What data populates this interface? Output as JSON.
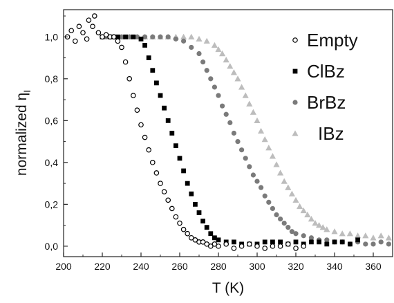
{
  "chart_data": {
    "type": "scatter",
    "title": "",
    "xlabel": "T (K)",
    "ylabel": "normalized η",
    "ylabel_subscript": "I",
    "xlim": [
      200,
      370
    ],
    "ylim": [
      -0.05,
      1.13
    ],
    "xticks": [
      "200",
      "220",
      "240",
      "260",
      "280",
      "300",
      "320",
      "340",
      "360"
    ],
    "yticks": [
      "0,0",
      "0,2",
      "0,4",
      "0,6",
      "0,8",
      "1,0"
    ],
    "legend_placement": "top-right",
    "grid": false,
    "series": [
      {
        "name": "Empty",
        "marker": "open-circle",
        "color": "#000000",
        "points": [
          [
            202,
            1.0
          ],
          [
            204,
            1.03
          ],
          [
            206,
            0.98
          ],
          [
            208,
            1.05
          ],
          [
            210,
            1.02
          ],
          [
            212,
            0.99
          ],
          [
            213,
            1.08
          ],
          [
            215,
            1.05
          ],
          [
            216,
            1.1
          ],
          [
            218,
            1.02
          ],
          [
            220,
            1.0
          ],
          [
            222,
            1.01
          ],
          [
            224,
            1.0
          ],
          [
            226,
            1.0
          ],
          [
            228,
            0.98
          ],
          [
            230,
            0.95
          ],
          [
            232,
            0.88
          ],
          [
            234,
            0.8
          ],
          [
            236,
            0.72
          ],
          [
            238,
            0.65
          ],
          [
            240,
            0.58
          ],
          [
            242,
            0.52
          ],
          [
            244,
            0.46
          ],
          [
            246,
            0.4
          ],
          [
            248,
            0.35
          ],
          [
            250,
            0.3
          ],
          [
            252,
            0.26
          ],
          [
            254,
            0.22
          ],
          [
            256,
            0.18
          ],
          [
            258,
            0.14
          ],
          [
            260,
            0.11
          ],
          [
            262,
            0.08
          ],
          [
            264,
            0.06
          ],
          [
            266,
            0.04
          ],
          [
            268,
            0.03
          ],
          [
            270,
            0.02
          ],
          [
            272,
            0.02
          ],
          [
            274,
            0.01
          ],
          [
            276,
            0.0
          ],
          [
            278,
            0.01
          ],
          [
            280,
            0.0
          ],
          [
            284,
            0.01
          ],
          [
            288,
            -0.01
          ],
          [
            292,
            0.0
          ],
          [
            296,
            0.01
          ],
          [
            300,
            0.0
          ],
          [
            304,
            -0.01
          ],
          [
            308,
            0.0
          ],
          [
            312,
            0.0
          ],
          [
            316,
            0.01
          ],
          [
            320,
            -0.01
          ],
          [
            324,
            0.0
          ]
        ]
      },
      {
        "name": "ClBz",
        "marker": "filled-square",
        "color": "#000000",
        "points": [
          [
            220,
            1.0
          ],
          [
            224,
            1.0
          ],
          [
            228,
            1.0
          ],
          [
            232,
            1.0
          ],
          [
            236,
            1.0
          ],
          [
            240,
            0.99
          ],
          [
            242,
            0.96
          ],
          [
            244,
            0.9
          ],
          [
            246,
            0.84
          ],
          [
            248,
            0.78
          ],
          [
            250,
            0.72
          ],
          [
            252,
            0.66
          ],
          [
            254,
            0.6
          ],
          [
            256,
            0.54
          ],
          [
            258,
            0.48
          ],
          [
            260,
            0.42
          ],
          [
            262,
            0.36
          ],
          [
            264,
            0.3
          ],
          [
            266,
            0.25
          ],
          [
            268,
            0.2
          ],
          [
            270,
            0.16
          ],
          [
            272,
            0.12
          ],
          [
            274,
            0.09
          ],
          [
            276,
            0.06
          ],
          [
            278,
            0.04
          ],
          [
            280,
            0.03
          ],
          [
            284,
            0.02
          ],
          [
            288,
            0.02
          ],
          [
            292,
            0.01
          ],
          [
            296,
            0.01
          ],
          [
            300,
            0.01
          ],
          [
            304,
            0.02
          ],
          [
            308,
            0.02
          ],
          [
            312,
            0.02
          ],
          [
            316,
            0.01
          ],
          [
            320,
            0.02
          ],
          [
            324,
            0.01
          ],
          [
            328,
            0.02
          ],
          [
            332,
            0.02
          ],
          [
            336,
            0.01
          ],
          [
            340,
            0.02
          ],
          [
            344,
            0.02
          ],
          [
            348,
            0.01
          ],
          [
            352,
            0.03
          ]
        ]
      },
      {
        "name": "BrBz",
        "marker": "filled-circle",
        "color": "#7a7a7a",
        "points": [
          [
            222,
            1.0
          ],
          [
            226,
            1.0
          ],
          [
            230,
            1.0
          ],
          [
            234,
            1.0
          ],
          [
            238,
            1.0
          ],
          [
            242,
            1.0
          ],
          [
            246,
            1.0
          ],
          [
            250,
            1.0
          ],
          [
            254,
            1.0
          ],
          [
            258,
            0.99
          ],
          [
            262,
            0.98
          ],
          [
            266,
            0.95
          ],
          [
            270,
            0.92
          ],
          [
            272,
            0.88
          ],
          [
            274,
            0.84
          ],
          [
            276,
            0.8
          ],
          [
            278,
            0.76
          ],
          [
            280,
            0.72
          ],
          [
            282,
            0.67
          ],
          [
            284,
            0.63
          ],
          [
            286,
            0.59
          ],
          [
            288,
            0.54
          ],
          [
            290,
            0.5
          ],
          [
            292,
            0.46
          ],
          [
            294,
            0.42
          ],
          [
            296,
            0.38
          ],
          [
            298,
            0.34
          ],
          [
            300,
            0.31
          ],
          [
            302,
            0.28
          ],
          [
            304,
            0.24
          ],
          [
            306,
            0.21
          ],
          [
            308,
            0.18
          ],
          [
            310,
            0.15
          ],
          [
            312,
            0.13
          ],
          [
            314,
            0.11
          ],
          [
            316,
            0.09
          ],
          [
            318,
            0.07
          ],
          [
            320,
            0.06
          ],
          [
            324,
            0.05
          ],
          [
            328,
            0.04
          ],
          [
            332,
            0.03
          ],
          [
            336,
            0.03
          ],
          [
            340,
            0.02
          ],
          [
            344,
            0.02
          ],
          [
            348,
            0.01
          ],
          [
            352,
            0.02
          ],
          [
            356,
            0.01
          ],
          [
            360,
            0.01
          ],
          [
            364,
            0.02
          ],
          [
            368,
            0.01
          ]
        ]
      },
      {
        "name": "IBz",
        "marker": "filled-triangle",
        "color": "#bdbdbd",
        "points": [
          [
            226,
            1.0
          ],
          [
            230,
            1.0
          ],
          [
            234,
            1.0
          ],
          [
            238,
            1.0
          ],
          [
            242,
            1.0
          ],
          [
            246,
            1.0
          ],
          [
            250,
            1.0
          ],
          [
            254,
            1.0
          ],
          [
            258,
            1.0
          ],
          [
            262,
            1.0
          ],
          [
            266,
            1.0
          ],
          [
            270,
            0.99
          ],
          [
            274,
            0.98
          ],
          [
            278,
            0.96
          ],
          [
            280,
            0.94
          ],
          [
            282,
            0.92
          ],
          [
            284,
            0.89
          ],
          [
            286,
            0.86
          ],
          [
            288,
            0.83
          ],
          [
            290,
            0.8
          ],
          [
            292,
            0.76
          ],
          [
            294,
            0.72
          ],
          [
            296,
            0.68
          ],
          [
            298,
            0.64
          ],
          [
            300,
            0.6
          ],
          [
            302,
            0.55
          ],
          [
            304,
            0.51
          ],
          [
            306,
            0.47
          ],
          [
            308,
            0.43
          ],
          [
            310,
            0.39
          ],
          [
            312,
            0.35
          ],
          [
            314,
            0.31
          ],
          [
            316,
            0.28
          ],
          [
            318,
            0.25
          ],
          [
            320,
            0.22
          ],
          [
            322,
            0.19
          ],
          [
            324,
            0.17
          ],
          [
            326,
            0.15
          ],
          [
            328,
            0.13
          ],
          [
            330,
            0.11
          ],
          [
            332,
            0.1
          ],
          [
            334,
            0.09
          ],
          [
            336,
            0.08
          ],
          [
            340,
            0.07
          ],
          [
            344,
            0.06
          ],
          [
            348,
            0.06
          ],
          [
            352,
            0.05
          ],
          [
            356,
            0.05
          ],
          [
            360,
            0.04
          ],
          [
            364,
            0.05
          ],
          [
            368,
            0.04
          ]
        ]
      }
    ]
  }
}
